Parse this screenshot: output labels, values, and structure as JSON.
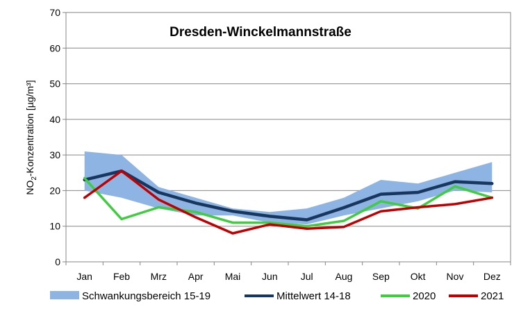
{
  "chart_data": {
    "type": "line",
    "title": "Dresden-Winckelmannstraße",
    "ylabel": {
      "prefix": "NO",
      "sub": "2",
      "suffix": "-Konzentration [µg/m³]"
    },
    "xlabel": "",
    "categories": [
      "Jan",
      "Feb",
      "Mrz",
      "Apr",
      "Mai",
      "Jun",
      "Jul",
      "Aug",
      "Sep",
      "Okt",
      "Nov",
      "Dez"
    ],
    "ylim": [
      0,
      70
    ],
    "yticks": [
      0,
      10,
      20,
      30,
      40,
      50,
      60,
      70
    ],
    "grid": true,
    "legend_position": "bottom",
    "range_band": {
      "name": "Schwankungsbereich 15-19",
      "color": "#8eb4e3",
      "upper": [
        31,
        30,
        21,
        18,
        15,
        14,
        15,
        18,
        23,
        22,
        25,
        28
      ],
      "lower": [
        20,
        18,
        15,
        13,
        13,
        11,
        10.5,
        13,
        15,
        17,
        20,
        19.5
      ]
    },
    "series": [
      {
        "name": "Mittelwert 14-18",
        "color": "#17375e",
        "values": [
          23,
          25.5,
          19.5,
          16.5,
          14.2,
          12.8,
          11.8,
          15.2,
          19,
          19.5,
          22.5,
          22
        ]
      },
      {
        "name": "2020",
        "color": "#3fcc3f",
        "values": [
          23.5,
          12,
          15.3,
          14,
          11,
          11,
          10,
          11.5,
          17,
          15,
          21.2,
          18
        ]
      },
      {
        "name": "2021",
        "color": "#c00000",
        "values": [
          18,
          25.5,
          17.5,
          12.5,
          8,
          10.5,
          9.3,
          9.8,
          14.2,
          15.3,
          16.2,
          18
        ]
      }
    ]
  }
}
